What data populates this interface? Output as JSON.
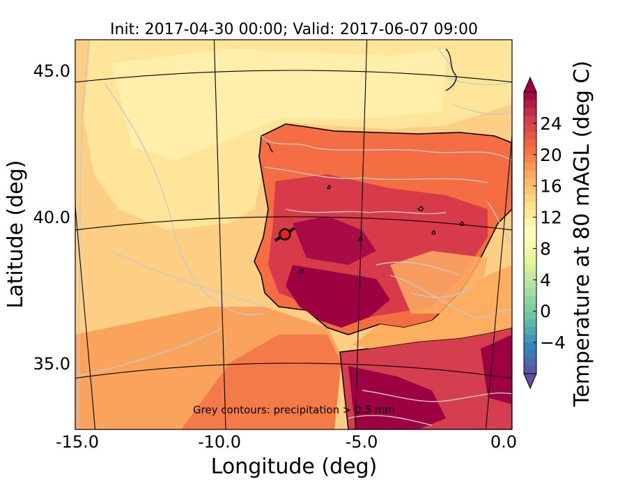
{
  "title": "Init: 2017-04-30 00:00; Valid: 2017-06-07 09:00",
  "map": {
    "xlabel": "Longitude (deg)",
    "ylabel": "Latitude (deg)",
    "xlim": [
      -15.8,
      0.1
    ],
    "ylim": [
      32.7,
      46.1
    ],
    "lon_ticks": [
      {
        "value": -15.0,
        "label": "-15.0"
      },
      {
        "value": -10.0,
        "label": "-10.0"
      },
      {
        "value": -5.0,
        "label": "-5.0"
      },
      {
        "value": 0.0,
        "label": "0.0"
      }
    ],
    "lat_ticks": [
      {
        "value": 35.0,
        "label": "35.0"
      },
      {
        "value": 40.0,
        "label": "40.0"
      },
      {
        "value": 45.0,
        "label": "45.0"
      }
    ],
    "note": "Grey contours: precipitation > 0.5 mm",
    "site_marker": {
      "lon": -7.7,
      "lat": 39.4,
      "color": "#e8221a"
    },
    "colors": {
      "ocean": "#fdcf84",
      "north_ocean": "#fee59a",
      "land_warm": "#d73b4a",
      "land_hot": "#9e0142",
      "precip_contour": "#c8c8c8",
      "coast": "#000000"
    }
  },
  "colorbar": {
    "label": "Temperature at 80 mAGL (deg C)",
    "min": -8,
    "max": 28,
    "ticks": [
      {
        "value": -4,
        "label": "−4"
      },
      {
        "value": 0,
        "label": "0"
      },
      {
        "value": 4,
        "label": "4"
      },
      {
        "value": 8,
        "label": "8"
      },
      {
        "value": 12,
        "label": "12"
      },
      {
        "value": 16,
        "label": "16"
      },
      {
        "value": 20,
        "label": "20"
      },
      {
        "value": 24,
        "label": "24"
      }
    ],
    "cmap_colors": [
      "#5e4fa2",
      "#3288bd",
      "#66c2a5",
      "#abdda4",
      "#e6f598",
      "#ffffbf",
      "#fee08b",
      "#fdae61",
      "#f46d43",
      "#d53e4f",
      "#9e0142"
    ]
  }
}
